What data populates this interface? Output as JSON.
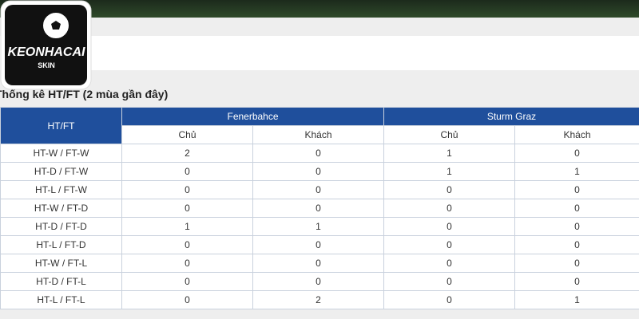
{
  "logo": {
    "title": "KEONHACAI",
    "subtitle": "SKIN"
  },
  "section": {
    "title": "Thống kê HT/FT (2 mùa gần đây)"
  },
  "table": {
    "corner": "HT/FT",
    "groups": [
      "Fenerbahce",
      "Sturm Graz"
    ],
    "subheaders": [
      "Chủ",
      "Khách",
      "Chủ",
      "Khách"
    ],
    "rows": [
      [
        "HT-W / FT-W",
        2,
        0,
        1,
        0
      ],
      [
        "HT-D / FT-W",
        0,
        0,
        1,
        1
      ],
      [
        "HT-L / FT-W",
        0,
        0,
        0,
        0
      ],
      [
        "HT-W / FT-D",
        0,
        0,
        0,
        0
      ],
      [
        "HT-D / FT-D",
        1,
        1,
        0,
        0
      ],
      [
        "HT-L / FT-D",
        0,
        0,
        0,
        0
      ],
      [
        "HT-W / FT-L",
        0,
        0,
        0,
        0
      ],
      [
        "HT-D / FT-L",
        0,
        0,
        0,
        0
      ],
      [
        "HT-L / FT-L",
        0,
        2,
        0,
        1
      ]
    ]
  }
}
